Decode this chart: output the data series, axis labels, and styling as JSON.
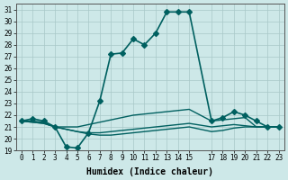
{
  "xlabel": "Humidex (Indice chaleur)",
  "ylabel": "",
  "bg_color": "#cde8e8",
  "grid_color": "#a8c8c8",
  "line_color": "#006060",
  "xlim": [
    -0.5,
    23.5
  ],
  "ylim": [
    19,
    31.5
  ],
  "yticks": [
    19,
    20,
    21,
    22,
    23,
    24,
    25,
    26,
    27,
    28,
    29,
    30,
    31
  ],
  "xticks": [
    0,
    1,
    2,
    3,
    4,
    5,
    6,
    7,
    8,
    9,
    10,
    11,
    12,
    13,
    14,
    15,
    17,
    18,
    19,
    20,
    21,
    22,
    23
  ],
  "series": [
    {
      "x": [
        0,
        1,
        2,
        3,
        4,
        5,
        6,
        7,
        8,
        9,
        10,
        11,
        12,
        13,
        14,
        15,
        17,
        18,
        19,
        20,
        21,
        22,
        23
      ],
      "y": [
        21.5,
        21.7,
        21.5,
        21.0,
        19.3,
        19.2,
        20.5,
        23.2,
        27.2,
        27.3,
        28.5,
        28.0,
        29.0,
        30.8,
        30.8,
        30.8,
        21.5,
        21.8,
        22.3,
        22.0,
        21.5,
        21.0,
        21.0
      ],
      "marker": "D",
      "markersize": 3,
      "linewidth": 1.2
    },
    {
      "x": [
        0,
        1,
        2,
        3,
        4,
        5,
        6,
        7,
        8,
        9,
        10,
        11,
        12,
        13,
        14,
        15,
        17,
        18,
        19,
        20,
        21,
        22,
        23
      ],
      "y": [
        21.5,
        21.5,
        21.4,
        21.0,
        21.0,
        21.0,
        21.2,
        21.4,
        21.6,
        21.8,
        22.0,
        22.1,
        22.2,
        22.3,
        22.4,
        22.5,
        21.5,
        21.6,
        21.7,
        21.8,
        21.0,
        21.0,
        21.0
      ],
      "marker": null,
      "markersize": 0,
      "linewidth": 1.0
    },
    {
      "x": [
        0,
        1,
        2,
        3,
        4,
        5,
        6,
        7,
        8,
        9,
        10,
        11,
        12,
        13,
        14,
        15,
        17,
        18,
        19,
        20,
        21,
        22,
        23
      ],
      "y": [
        21.5,
        21.4,
        21.3,
        21.0,
        20.8,
        20.6,
        20.5,
        20.5,
        20.6,
        20.7,
        20.8,
        20.9,
        21.0,
        21.1,
        21.2,
        21.3,
        21.0,
        21.1,
        21.2,
        21.1,
        21.0,
        21.0,
        21.0
      ],
      "marker": null,
      "markersize": 0,
      "linewidth": 1.0
    },
    {
      "x": [
        0,
        1,
        2,
        3,
        4,
        5,
        6,
        7,
        8,
        9,
        10,
        11,
        12,
        13,
        14,
        15,
        17,
        18,
        19,
        20,
        21,
        22,
        23
      ],
      "y": [
        21.5,
        21.4,
        21.3,
        21.0,
        20.8,
        20.6,
        20.4,
        20.3,
        20.3,
        20.4,
        20.5,
        20.6,
        20.7,
        20.8,
        20.9,
        21.0,
        20.6,
        20.7,
        20.9,
        21.0,
        21.0,
        21.0,
        21.0
      ],
      "marker": null,
      "markersize": 0,
      "linewidth": 1.0
    }
  ]
}
